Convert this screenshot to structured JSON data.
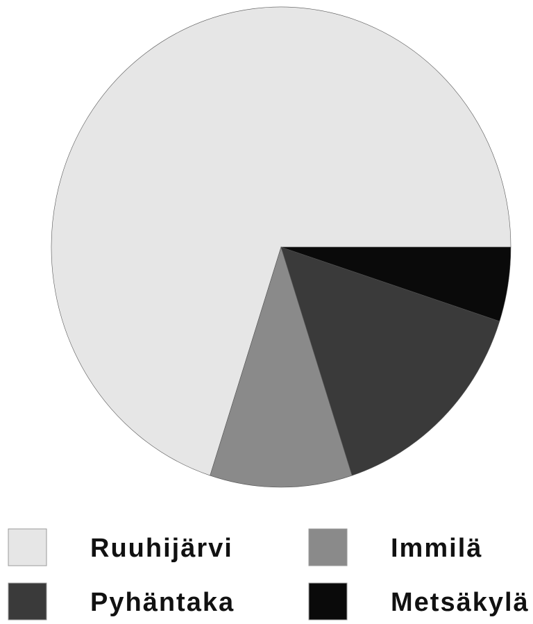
{
  "chart_data": {
    "type": "pie",
    "categories": [
      "Ruuhijärvi",
      "Immilä",
      "Pyhäntaka",
      "Metsäkylä"
    ],
    "values": [
      70,
      10,
      15,
      5
    ],
    "colors": [
      "#e6e6e6",
      "#8a8a8a",
      "#3a3a3a",
      "#0a0a0a"
    ],
    "legend": "bottom"
  }
}
